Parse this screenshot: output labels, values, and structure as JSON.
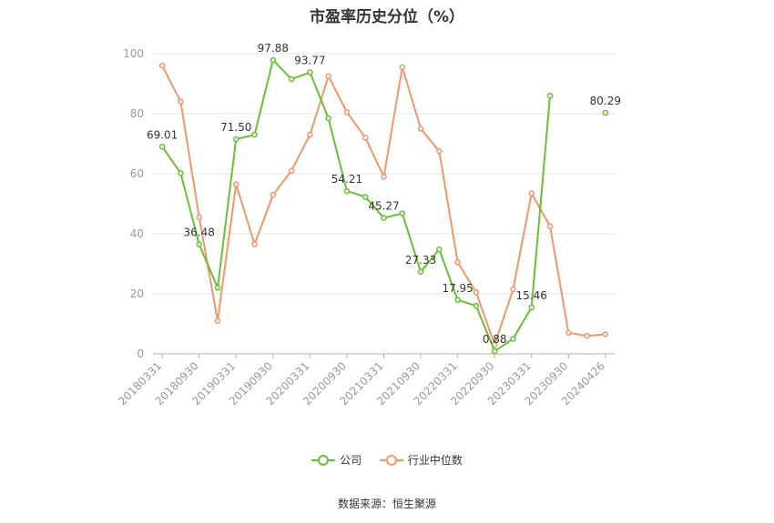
{
  "chart_data": {
    "type": "line",
    "title": "市盈率历史分位（%）",
    "ylim": [
      0,
      100
    ],
    "yticks": [
      0,
      20,
      40,
      60,
      80,
      100
    ],
    "xtick_labels": [
      "20180331",
      "20180930",
      "20190331",
      "20190930",
      "20200331",
      "20200930",
      "20210331",
      "20210930",
      "20220331",
      "20220930",
      "20230331",
      "20230930",
      "20240426"
    ],
    "x": [
      "20180331",
      "20180630",
      "20180930",
      "20181231",
      "20190331",
      "20190630",
      "20190930",
      "20191231",
      "20200331",
      "20200630",
      "20200930",
      "20201231",
      "20210331",
      "20210630",
      "20210930",
      "20211231",
      "20220331",
      "20220630",
      "20220930",
      "20221231",
      "20230331",
      "20230630",
      "20230930",
      "20231231",
      "20240426"
    ],
    "series": [
      {
        "name": "公司",
        "color": "#66c133",
        "values": [
          69.01,
          60.2,
          36.48,
          22.0,
          71.5,
          73.0,
          97.88,
          91.5,
          93.77,
          78.5,
          54.21,
          52.3,
          45.27,
          46.8,
          27.33,
          34.8,
          17.95,
          16.0,
          0.88,
          5.0,
          15.46,
          86.0,
          null,
          null,
          80.29
        ],
        "labels": [
          "69.01",
          null,
          "36.48",
          null,
          "71.50",
          null,
          "97.88",
          null,
          "93.77",
          null,
          "54.21",
          null,
          "45.27",
          null,
          "27.33",
          null,
          "17.95",
          null,
          "0.88",
          null,
          "15.46",
          null,
          null,
          null,
          "80.29"
        ]
      },
      {
        "name": "行业中位数",
        "color": "#f4956a",
        "values": [
          96.0,
          84.0,
          45.5,
          11.0,
          56.5,
          36.5,
          53.0,
          61.0,
          73.0,
          92.5,
          80.5,
          72.0,
          59.0,
          95.5,
          75.0,
          67.5,
          30.5,
          20.5,
          3.0,
          21.5,
          53.5,
          42.5,
          7.0,
          6.0,
          6.5
        ]
      }
    ],
    "grid": true,
    "legend_position": "bottom-center",
    "source": "数据来源：恒生聚源"
  }
}
